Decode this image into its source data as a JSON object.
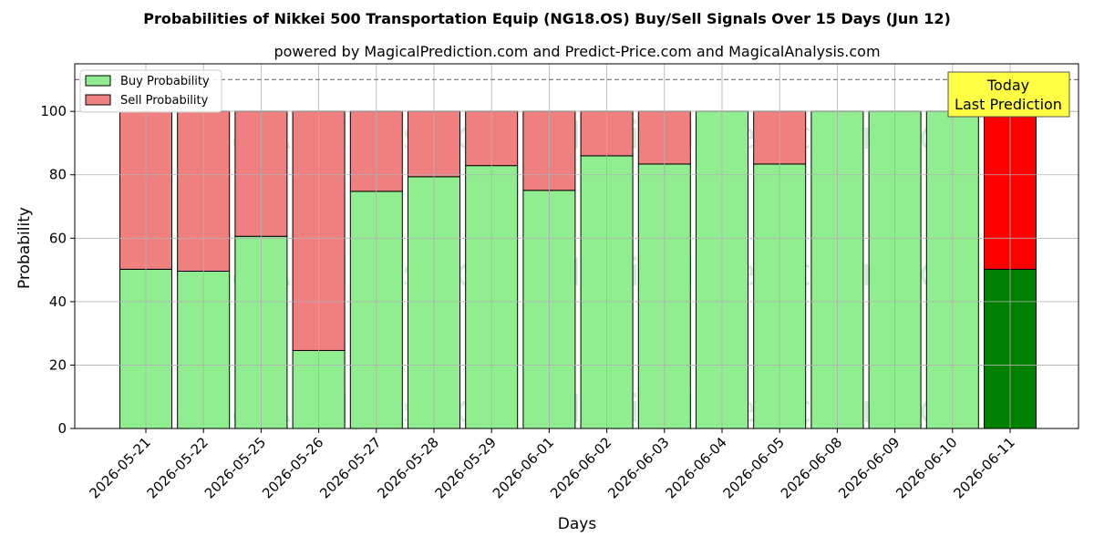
{
  "chart_data": {
    "type": "bar",
    "stacked": true,
    "title": "Probabilities of Nikkei 500 Transportation Equip (NG18.OS) Buy/Sell Signals Over 15 Days (Jun 12)",
    "subtitle": "powered by MagicalPrediction.com and Predict-Price.com and MagicalAnalysis.com",
    "xlabel": "Days",
    "ylabel": "Probability",
    "ylim": [
      0,
      115
    ],
    "yticks": [
      "0",
      "20",
      "40",
      "60",
      "80",
      "100"
    ],
    "reference_line": 110,
    "grid": true,
    "legend_position": "top-left",
    "categories": [
      "2026-05-21",
      "2026-05-22",
      "2026-05-25",
      "2026-05-26",
      "2026-05-27",
      "2026-05-28",
      "2026-05-29",
      "2026-06-01",
      "2026-06-02",
      "2026-06-03",
      "2026-06-04",
      "2026-06-05",
      "2026-06-08",
      "2026-06-09",
      "2026-06-10",
      "2026-06-11"
    ],
    "series": [
      {
        "name": "Buy Probability",
        "color": "#90ee90",
        "last_color": "#008000",
        "values": [
          50.2,
          49.6,
          60.6,
          24.6,
          74.8,
          79.4,
          82.9,
          75.1,
          86.0,
          83.4,
          100,
          83.4,
          100,
          100,
          100,
          50.2
        ]
      },
      {
        "name": "Sell Probability",
        "color": "#f08080",
        "last_color": "#ff0000",
        "values": [
          49.8,
          50.4,
          39.4,
          75.4,
          25.2,
          20.6,
          17.1,
          24.9,
          14.0,
          16.6,
          0,
          16.6,
          0,
          0,
          0,
          49.8
        ]
      }
    ],
    "annotation": {
      "line1": "Today",
      "line2": "Last Prediction",
      "bg": "#ffff44"
    },
    "watermarks": [
      "MagicalAnalysis.com",
      "MagicalPrediction.com"
    ]
  }
}
